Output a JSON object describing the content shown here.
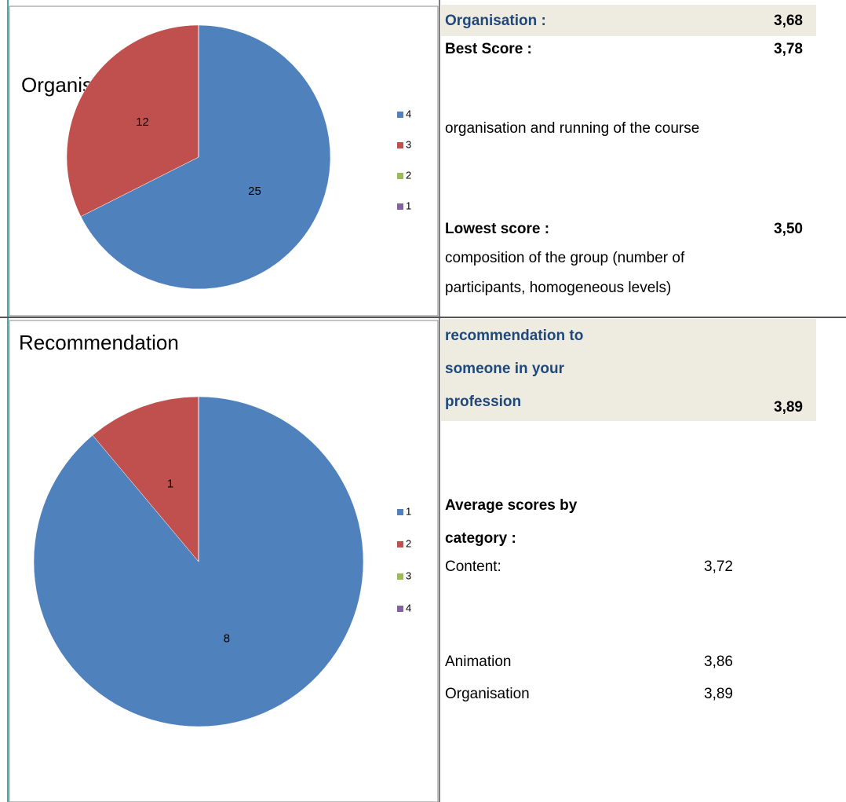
{
  "chart_data": [
    {
      "type": "pie",
      "title": "Organisation",
      "categories": [
        "4",
        "3",
        "2",
        "1"
      ],
      "values": [
        25,
        12,
        0,
        0
      ],
      "colors": [
        "#4f81bd",
        "#c0504d",
        "#9bbb59",
        "#8064a2"
      ]
    },
    {
      "type": "pie",
      "title": "Recommendation",
      "categories": [
        "1",
        "2",
        "3",
        "4"
      ],
      "values": [
        8,
        1,
        0,
        0
      ],
      "colors": [
        "#4f81bd",
        "#c0504d",
        "#9bbb59",
        "#8064a2"
      ]
    }
  ],
  "panel": {
    "organisation": {
      "label": "Organisation :",
      "value": "3,68"
    },
    "best_score": {
      "label": "Best Score :",
      "value": "3,78",
      "description": "organisation and running of the course"
    },
    "lowest_score": {
      "label": "Lowest score :",
      "value": "3,50",
      "description": [
        "composition of the group (number of",
        "participants, homogeneous levels)"
      ]
    },
    "recommendation": {
      "lines": [
        "recommendation to",
        "someone in your",
        "profession"
      ],
      "value": "3,89"
    },
    "averages": {
      "heading": [
        "Average scores by",
        "category :"
      ],
      "rows": [
        {
          "label": "Content:",
          "value": "3,72"
        },
        {
          "label": "Animation",
          "value": "3,86"
        },
        {
          "label": "Organisation",
          "value": "3,89"
        }
      ]
    }
  }
}
